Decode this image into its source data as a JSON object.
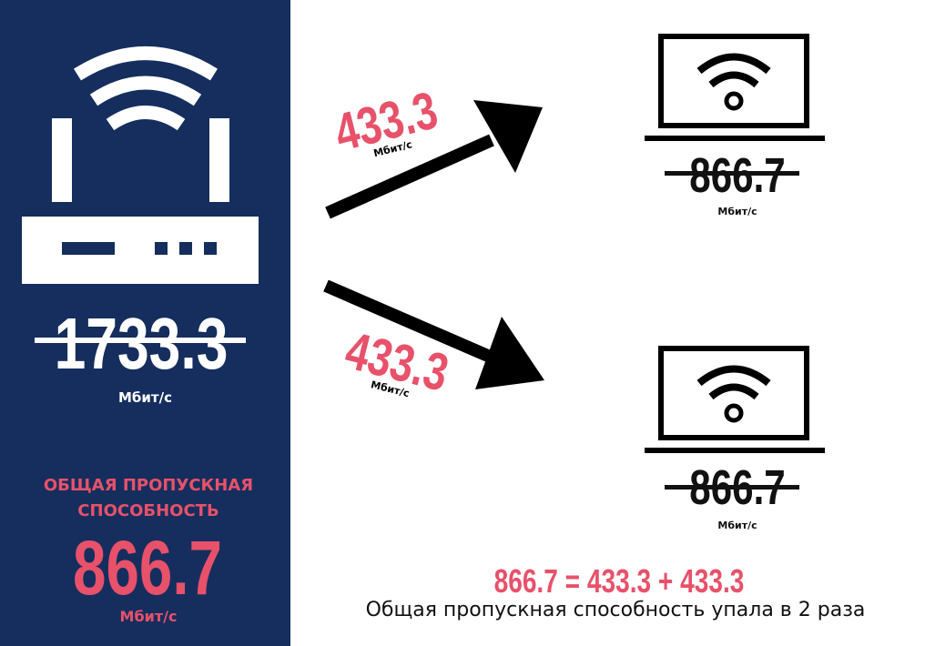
{
  "router": {
    "speed": "1733.3",
    "unit": "Мбит/с",
    "total_label": "ОБЩАЯ ПРОПУСКНАЯ СПОСОБНОСТЬ",
    "total_value": "866.7",
    "total_unit": "Мбит/с"
  },
  "streams": [
    {
      "value": "433.3",
      "unit": "Мбит/с"
    },
    {
      "value": "433.3",
      "unit": "Мбит/с"
    }
  ],
  "clients": [
    {
      "speed": "866.7",
      "unit": "Мбит/с"
    },
    {
      "speed": "866.7",
      "unit": "Мбит/с"
    }
  ],
  "equation": "866.7 = 433.3 + 433.3",
  "conclusion": "Общая пропускная способность упала в 2 раза",
  "colors": {
    "panel": "#152e5e",
    "accent": "#e8516a",
    "ink": "#000000",
    "white": "#ffffff"
  }
}
